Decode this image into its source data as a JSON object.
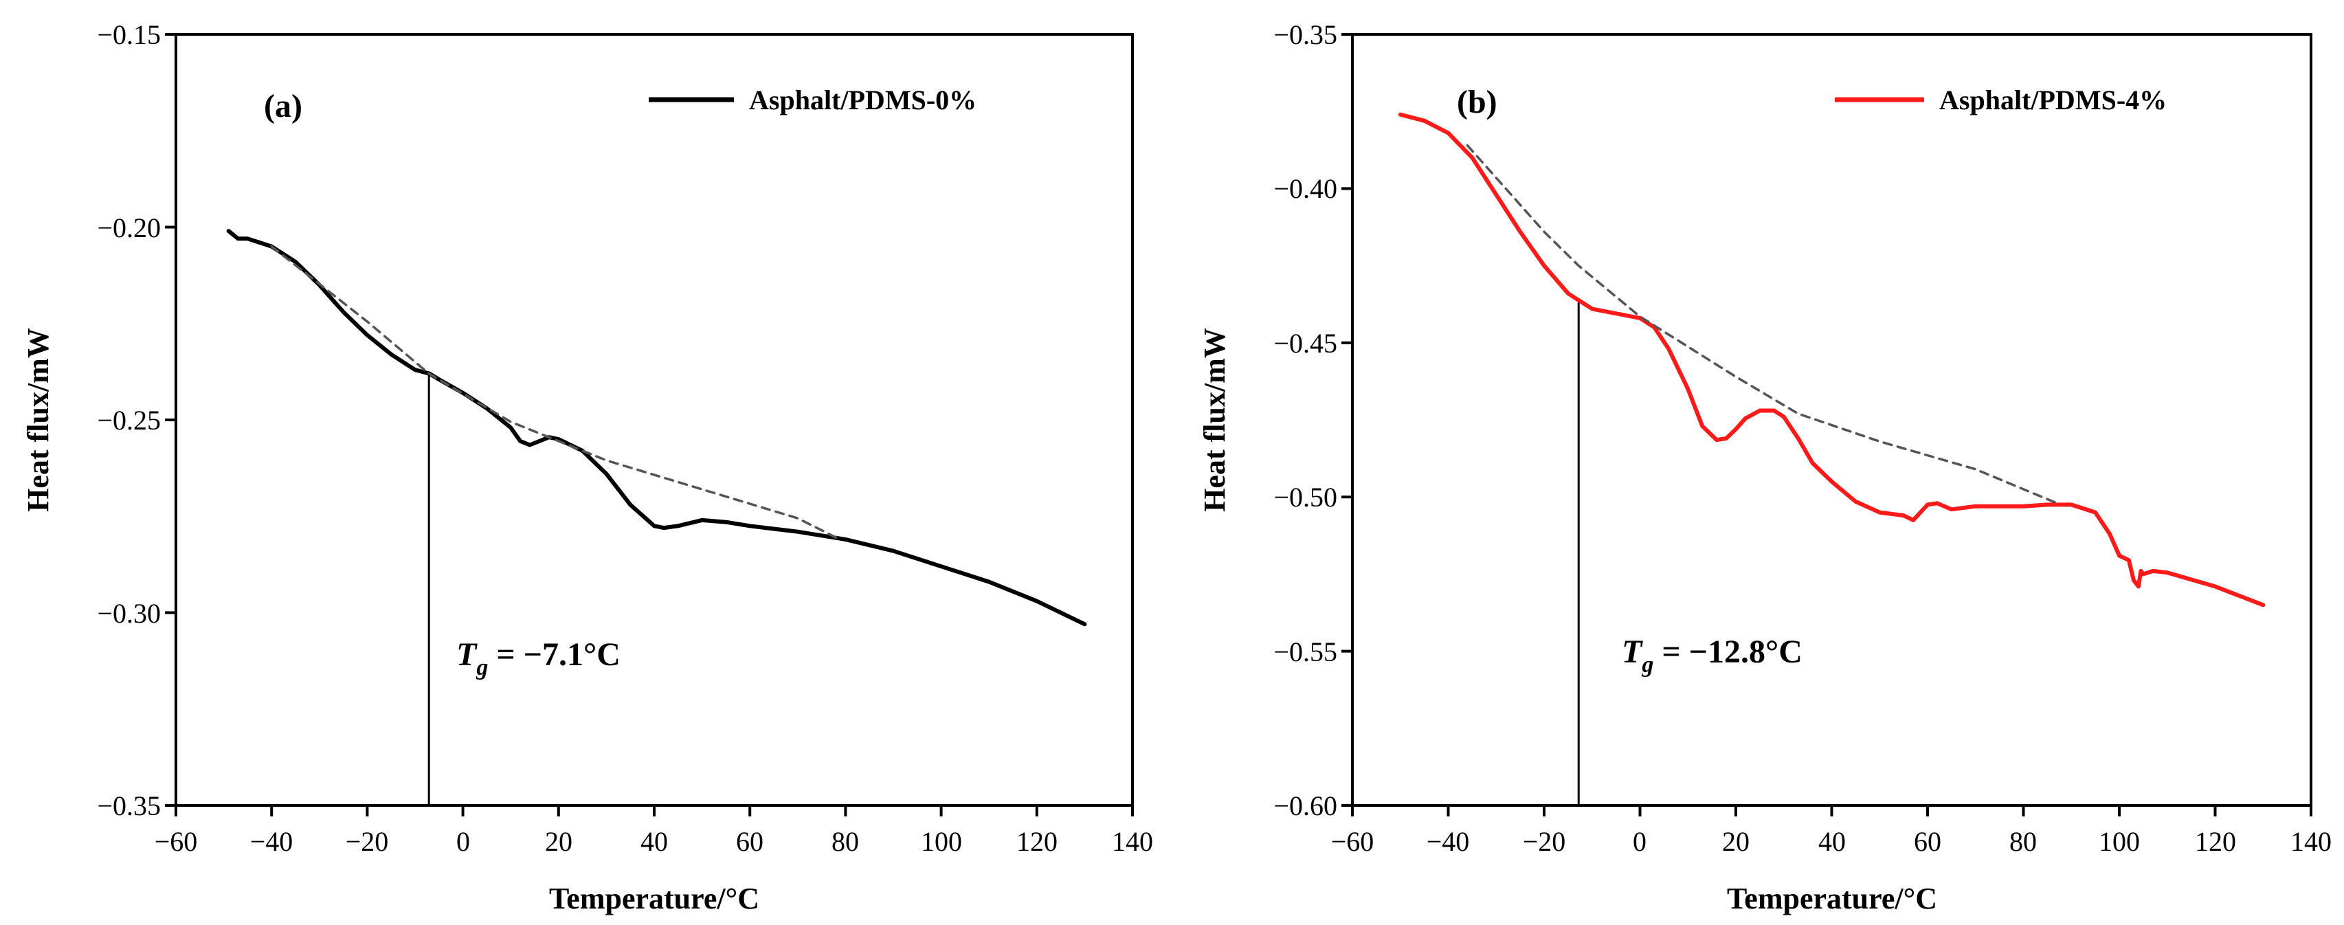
{
  "chart_data": [
    {
      "type": "line",
      "panel_label": "(a)",
      "xlabel": "Temperature/°C",
      "ylabel": "Heat flux/mW",
      "xlim": [
        -60,
        140
      ],
      "ylim": [
        -0.35,
        -0.15
      ],
      "xticks": [
        -60,
        -40,
        -20,
        0,
        20,
        40,
        60,
        80,
        100,
        120,
        140
      ],
      "xtick_labels": [
        "−60",
        "−40",
        "−20",
        "0",
        "20",
        "40",
        "60",
        "80",
        "100",
        "120",
        "140"
      ],
      "yticks": [
        -0.35,
        -0.3,
        -0.25,
        -0.2,
        -0.15
      ],
      "ytick_labels": [
        "−0.35",
        "−0.30",
        "−0.25",
        "−0.20",
        "−0.15"
      ],
      "legend_position": "top-right",
      "series": [
        {
          "name": "Asphalt/PDMS-0%",
          "color": "#000000",
          "x": [
            -49,
            -47,
            -45,
            -40,
            -35,
            -30,
            -25,
            -20,
            -15,
            -10,
            -7,
            -5,
            0,
            5,
            10,
            12,
            14,
            16,
            18,
            20,
            25,
            30,
            35,
            40,
            42,
            45,
            50,
            55,
            60,
            70,
            80,
            85,
            90,
            100,
            110,
            120,
            130
          ],
          "y": [
            -0.201,
            -0.203,
            -0.203,
            -0.205,
            -0.209,
            -0.215,
            -0.222,
            -0.228,
            -0.233,
            -0.237,
            -0.238,
            -0.2395,
            -0.243,
            -0.247,
            -0.252,
            -0.2555,
            -0.2565,
            -0.2555,
            -0.2545,
            -0.255,
            -0.258,
            -0.264,
            -0.272,
            -0.2775,
            -0.278,
            -0.2775,
            -0.276,
            -0.2765,
            -0.2775,
            -0.279,
            -0.281,
            -0.2825,
            -0.284,
            -0.288,
            -0.292,
            -0.297,
            -0.303
          ]
        },
        {
          "name": "baseline",
          "color": "#555555",
          "dashed": true,
          "x": [
            -40,
            -20,
            -7.1,
            10,
            30,
            50,
            70,
            78
          ],
          "y": [
            -0.205,
            -0.2245,
            -0.238,
            -0.2505,
            -0.2605,
            -0.268,
            -0.2755,
            -0.2805
          ]
        }
      ],
      "tg": {
        "label": "T",
        "subscript": "g",
        "value_text": " = −7.1°C",
        "x": -7.1,
        "y_top": -0.238
      }
    },
    {
      "type": "line",
      "panel_label": "(b)",
      "xlabel": "Temperature/°C",
      "ylabel": "Heat flux/mW",
      "xlim": [
        -60,
        140
      ],
      "ylim": [
        -0.6,
        -0.35
      ],
      "xticks": [
        -60,
        -40,
        -20,
        0,
        20,
        40,
        60,
        80,
        100,
        120,
        140
      ],
      "xtick_labels": [
        "−60",
        "−40",
        "−20",
        "0",
        "20",
        "40",
        "60",
        "80",
        "100",
        "120",
        "140"
      ],
      "yticks": [
        -0.6,
        -0.55,
        -0.5,
        -0.45,
        -0.4,
        -0.35
      ],
      "ytick_labels": [
        "−0.60",
        "−0.55",
        "−0.50",
        "−0.45",
        "−0.40",
        "−0.35"
      ],
      "legend_position": "top-right",
      "series": [
        {
          "name": "Asphalt/PDMS-4%",
          "color": "#ff1a1a",
          "x": [
            -50,
            -45,
            -40,
            -35,
            -30,
            -25,
            -20,
            -15,
            -10,
            -5,
            0,
            3,
            6,
            10,
            13,
            16,
            18,
            20,
            22,
            25,
            28,
            30,
            33,
            36,
            40,
            45,
            50,
            55,
            57,
            60,
            62,
            65,
            70,
            80,
            85,
            90,
            95,
            98,
            100,
            102,
            103,
            104,
            104.5,
            105,
            107,
            110,
            120,
            130
          ],
          "y": [
            -0.376,
            -0.378,
            -0.382,
            -0.39,
            -0.402,
            -0.414,
            -0.425,
            -0.434,
            -0.439,
            -0.4405,
            -0.442,
            -0.445,
            -0.452,
            -0.465,
            -0.477,
            -0.4815,
            -0.481,
            -0.478,
            -0.4745,
            -0.472,
            -0.472,
            -0.474,
            -0.481,
            -0.489,
            -0.495,
            -0.5015,
            -0.505,
            -0.506,
            -0.5075,
            -0.5025,
            -0.502,
            -0.504,
            -0.503,
            -0.503,
            -0.5025,
            -0.5025,
            -0.505,
            -0.512,
            -0.519,
            -0.5205,
            -0.527,
            -0.529,
            -0.524,
            -0.525,
            -0.524,
            -0.5245,
            -0.529,
            -0.535
          ]
        },
        {
          "name": "baseline",
          "color": "#555555",
          "dashed": true,
          "x": [
            -36,
            -20,
            -12.8,
            0,
            20,
            33,
            50,
            70,
            87
          ],
          "y": [
            -0.386,
            -0.414,
            -0.425,
            -0.4415,
            -0.461,
            -0.473,
            -0.482,
            -0.491,
            -0.502
          ]
        }
      ],
      "tg": {
        "label": "T",
        "subscript": "g",
        "value_text": " = −12.8°C",
        "x": -12.8,
        "y_top": -0.4355
      }
    }
  ]
}
